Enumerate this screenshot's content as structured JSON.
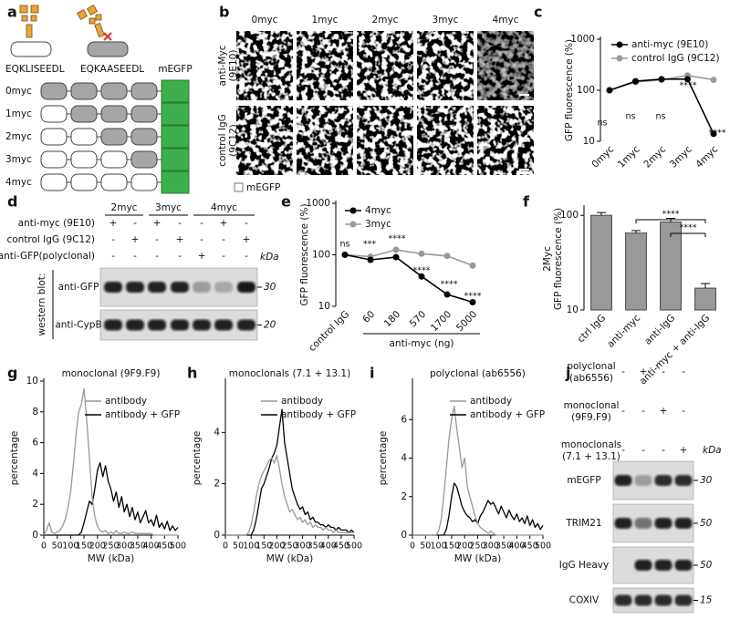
{
  "panel_labels": [
    "a",
    "b",
    "c",
    "d",
    "e",
    "f",
    "g",
    "h",
    "i",
    "j"
  ],
  "panel_a": {
    "peptides": [
      "EQKLISEEDL",
      "EQKAASEEDL"
    ],
    "tag": "mEGFP",
    "constructs": [
      "0myc",
      "1myc",
      "2myc",
      "3myc",
      "4myc"
    ]
  },
  "panel_b": {
    "columns": [
      "0myc",
      "1myc",
      "2myc",
      "3myc",
      "4myc"
    ],
    "rows": [
      [
        "anti-Myc",
        "(9E10)"
      ],
      [
        "control IgG",
        "(9C12)"
      ]
    ],
    "legend": "mEGFP"
  },
  "panel_d": {
    "columns": [
      "2myc",
      "3myc",
      "4myc"
    ],
    "treatments": [
      {
        "label": "anti-myc (9E10)",
        "signs": [
          "+",
          "-",
          "+",
          "-",
          "-",
          "+",
          "-"
        ]
      },
      {
        "label": "control IgG (9C12)",
        "signs": [
          "-",
          "+",
          "-",
          "+",
          "-",
          "-",
          "+"
        ]
      },
      {
        "label": "anti-GFP(polyclonal)",
        "signs": [
          "-",
          "-",
          "-",
          "-",
          "+",
          "-",
          "-"
        ]
      }
    ],
    "unit": "kDa",
    "side_label": "western blot:",
    "blots": [
      {
        "label": "anti-GFP",
        "marker": 30
      },
      {
        "label": "anti-CypB",
        "marker": 20
      }
    ]
  },
  "panel_j": {
    "treatments": [
      {
        "label": [
          "polyclonal",
          "(ab6556)"
        ],
        "signs": [
          "-",
          "+",
          "-",
          "-"
        ]
      },
      {
        "label": [
          "monoclonal",
          "(9F9.F9)"
        ],
        "signs": [
          "-",
          "-",
          "+",
          "-"
        ]
      },
      {
        "label": [
          "monoclonals",
          "(7.1 + 13.1)"
        ],
        "signs": [
          "-",
          "-",
          "-",
          "+"
        ]
      }
    ],
    "unit": "kDa",
    "blots": [
      {
        "label": "mEGFP",
        "marker": 30
      },
      {
        "label": "TRIM21",
        "marker": 50
      },
      {
        "label": "IgG Heavy",
        "marker": 50
      },
      {
        "label": "COXIV",
        "marker": 15
      }
    ]
  },
  "chart_data": [
    {
      "type": "line",
      "categories": [
        "0myc",
        "1myc",
        "2myc",
        "3myc",
        "4myc"
      ],
      "series": [
        {
          "name": "anti-myc (9E10)",
          "color": "#000000",
          "values": [
            100,
            150,
            165,
            165,
            14
          ]
        },
        {
          "name": "control IgG (9C12)",
          "color": "#999999",
          "values": [
            100,
            145,
            160,
            195,
            160
          ]
        }
      ],
      "ylabel": "GFP fluorescence (%)",
      "yscale": "log",
      "ylim": [
        10,
        1000
      ],
      "yticks": [
        10,
        100,
        1000
      ],
      "markers": true,
      "legend": "upper right",
      "annotations": [
        "ns",
        "ns",
        "ns",
        "****",
        "****"
      ]
    },
    {
      "type": "line",
      "categories": [
        "control IgG",
        "60",
        "180",
        "570",
        "1700",
        "5000"
      ],
      "series": [
        {
          "name": "4myc",
          "color": "#000000",
          "values": [
            100,
            80,
            90,
            38,
            17,
            12
          ]
        },
        {
          "name": "3myc",
          "color": "#999999",
          "values": [
            100,
            92,
            125,
            105,
            95,
            62
          ]
        }
      ],
      "xlabel": "anti-myc (ng)",
      "ylabel": "GFP fluorescence (%)",
      "yscale": "log",
      "ylim": [
        10,
        1000
      ],
      "yticks": [
        10,
        100,
        1000
      ],
      "markers": true,
      "legend": "upper left",
      "annotations": [
        "ns",
        "***",
        "****",
        "****",
        "****",
        "****"
      ]
    },
    {
      "type": "bar",
      "categories": [
        "ctrl IgG",
        "anti-myc",
        "anti-IgG",
        "anti-myc + anti-IgG"
      ],
      "values": [
        100,
        65,
        85,
        17
      ],
      "errors": [
        7,
        4,
        8,
        2
      ],
      "color": "#999999",
      "ylabel": [
        "2Myc",
        "GFP fluorescence (%)"
      ],
      "yscale": "log",
      "ylim": [
        10,
        120
      ],
      "yticks": [
        10,
        100
      ],
      "annotations": [
        "****",
        "****"
      ]
    },
    {
      "type": "line",
      "title": "monoclonal (9F9.F9)",
      "x": [
        0,
        10,
        20,
        30,
        40,
        50,
        60,
        70,
        80,
        90,
        100,
        110,
        120,
        130,
        140,
        150,
        160,
        170,
        180,
        190,
        200,
        210,
        220,
        230,
        240,
        250,
        260,
        270,
        280,
        290,
        300,
        310,
        320,
        330,
        340,
        350,
        360,
        370,
        380,
        390,
        400,
        410,
        420,
        430,
        440,
        450,
        460,
        470,
        480,
        490,
        500
      ],
      "series": [
        {
          "name": "antibody",
          "color": "#999999",
          "values": [
            0,
            0.3,
            0.8,
            0.2,
            0.1,
            0.2,
            0.3,
            0.6,
            1,
            1.8,
            2.8,
            4.5,
            6.5,
            8,
            8.5,
            9.5,
            7.5,
            5,
            2.5,
            1.2,
            0.6,
            0.3,
            0.2,
            0.3,
            0.1,
            0.2,
            0.1,
            0.3,
            0.1,
            0.1,
            0.2,
            0.1,
            0.1,
            0.2,
            0.1,
            0.1,
            0.1,
            0.1,
            0.1,
            0.1,
            0.1,
            0,
            0,
            0,
            0,
            0,
            0,
            0,
            0,
            0,
            0
          ]
        },
        {
          "name": "antibody + GFP",
          "color": "#000000",
          "values": [
            0,
            0,
            0,
            0,
            0,
            0,
            0,
            0,
            0,
            0,
            0,
            0,
            0,
            0,
            0.2,
            0.8,
            1.5,
            2.2,
            2,
            3,
            4.2,
            4.7,
            3.8,
            4.5,
            3.5,
            3,
            2.2,
            2.8,
            1.8,
            2.5,
            1.5,
            2,
            1.2,
            1.8,
            1,
            1.5,
            0.8,
            1.2,
            1.6,
            0.8,
            1,
            0.6,
            1.3,
            0.5,
            0.8,
            0.4,
            0.9,
            0.3,
            0.6,
            0.3,
            0.5
          ]
        }
      ],
      "xlabel": "MW (kDa)",
      "ylabel": "percentage",
      "xlim": [
        0,
        500
      ],
      "xticks": [
        0,
        50,
        100,
        150,
        200,
        250,
        300,
        350,
        400,
        450,
        500
      ],
      "ylim": [
        0,
        10
      ],
      "yticks": [
        0,
        2,
        4,
        6,
        8,
        10
      ],
      "legend": "upper right"
    },
    {
      "type": "line",
      "title": "monoclonals (7.1 + 13.1)",
      "x": [
        0,
        10,
        20,
        30,
        40,
        50,
        60,
        70,
        80,
        90,
        100,
        110,
        120,
        130,
        140,
        150,
        160,
        170,
        180,
        190,
        200,
        210,
        220,
        230,
        240,
        250,
        260,
        270,
        280,
        290,
        300,
        310,
        320,
        330,
        340,
        350,
        360,
        370,
        380,
        390,
        400,
        410,
        420,
        430,
        440,
        450,
        460,
        470,
        480,
        490,
        500
      ],
      "series": [
        {
          "name": "antibody",
          "color": "#999999",
          "values": [
            0,
            0,
            0,
            0,
            0,
            0,
            0,
            0,
            0,
            0.1,
            0.4,
            0.9,
            1.5,
            2,
            2.3,
            2.5,
            2.7,
            2.9,
            3,
            2.8,
            3.1,
            2.6,
            2,
            1.5,
            1.2,
            0.9,
            1,
            0.8,
            0.6,
            0.7,
            0.5,
            0.6,
            0.4,
            0.5,
            0.3,
            0.4,
            0.3,
            0.3,
            0.2,
            0.3,
            0.2,
            0.2,
            0.1,
            0.2,
            0.1,
            0.1,
            0.1,
            0.1,
            0.1,
            0.1,
            0.1
          ]
        },
        {
          "name": "antibody + GFP",
          "color": "#000000",
          "values": [
            0,
            0,
            0,
            0,
            0,
            0,
            0,
            0,
            0,
            0,
            0,
            0.2,
            0.6,
            1.2,
            1.8,
            2,
            2.3,
            2.6,
            3,
            3.2,
            3.5,
            4.2,
            4.9,
            3.6,
            3,
            2.4,
            1.8,
            1.5,
            1.2,
            1,
            1.1,
            0.8,
            0.9,
            0.6,
            0.7,
            0.5,
            0.5,
            0.4,
            0.4,
            0.3,
            0.4,
            0.3,
            0.3,
            0.2,
            0.3,
            0.2,
            0.2,
            0.2,
            0.1,
            0.2,
            0.1
          ]
        }
      ],
      "xlabel": "MW (kDa)",
      "ylabel": "percentage",
      "xlim": [
        0,
        500
      ],
      "xticks": [
        0,
        50,
        100,
        150,
        200,
        250,
        300,
        350,
        400,
        450,
        500
      ],
      "ylim": [
        0,
        6
      ],
      "yticks": [
        0,
        2,
        4
      ],
      "legend": "upper right"
    },
    {
      "type": "line",
      "title": "polyclonal (ab6556)",
      "x": [
        0,
        10,
        20,
        30,
        40,
        50,
        60,
        70,
        80,
        90,
        100,
        110,
        120,
        130,
        140,
        150,
        160,
        170,
        180,
        190,
        200,
        210,
        220,
        230,
        240,
        250,
        260,
        270,
        280,
        290,
        300,
        310,
        320,
        330,
        340,
        350,
        360,
        370,
        380,
        390,
        400,
        410,
        420,
        430,
        440,
        450,
        460,
        470,
        480,
        490,
        500
      ],
      "series": [
        {
          "name": "antibody",
          "color": "#999999",
          "values": [
            0,
            0,
            0,
            0,
            0,
            0,
            0,
            0,
            0,
            0,
            0.2,
            0.8,
            2,
            3.5,
            5,
            6,
            6.7,
            5.5,
            4.5,
            3.5,
            4,
            2.5,
            2,
            1.5,
            1,
            0.6,
            0.4,
            0.3,
            0.2,
            0.1,
            0.2,
            0.1,
            0,
            0,
            0,
            0,
            0,
            0,
            0,
            0,
            0,
            0,
            0,
            0,
            0,
            0,
            0,
            0,
            0,
            0,
            0
          ]
        },
        {
          "name": "antibody + GFP",
          "color": "#000000",
          "values": [
            0,
            0,
            0,
            0,
            0,
            0,
            0,
            0,
            0,
            0,
            0,
            0,
            0,
            0.3,
            1,
            2,
            2.7,
            2.5,
            2,
            1.5,
            1.2,
            1,
            0.9,
            0.7,
            0.8,
            0.6,
            1,
            1.2,
            1.5,
            1.8,
            1.6,
            1.7,
            1.4,
            1.1,
            1.5,
            1.2,
            0.9,
            1.3,
            1,
            0.8,
            1.1,
            0.7,
            0.9,
            0.6,
            1,
            0.5,
            0.8,
            0.4,
            0.6,
            0.3,
            0.5
          ]
        }
      ],
      "xlabel": "MW (kDa)",
      "ylabel": "percentage",
      "xlim": [
        0,
        500
      ],
      "xticks": [
        0,
        50,
        100,
        150,
        200,
        250,
        300,
        350,
        400,
        450,
        500
      ],
      "ylim": [
        0,
        8
      ],
      "yticks": [
        0,
        2,
        4,
        6
      ],
      "legend": "upper right"
    }
  ]
}
